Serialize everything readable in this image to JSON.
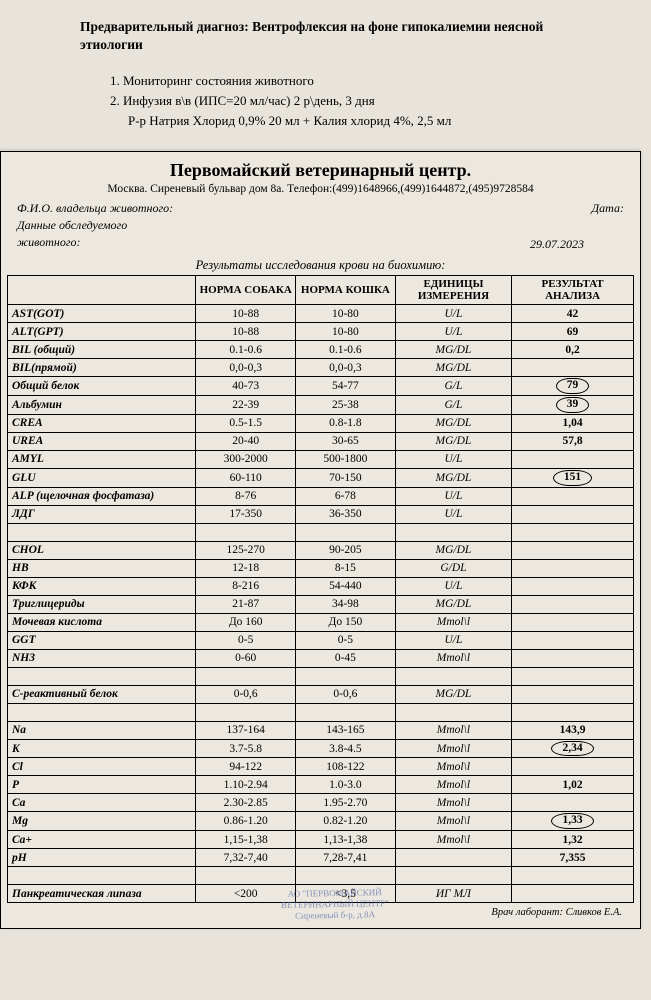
{
  "diagnosis_label": "Предварительный диагноз: Вентрофлексия на фоне гипокалиемии неясной этиологии",
  "list": {
    "i1": "1.  Мониторинг состояния животного",
    "i2": "2.  Инфузия в\\в (ИПС=20 мл/час) 2 р\\день, 3 дня",
    "i2b": "Р-р Натрия Хлорид 0,9% 20 мл + Калия хлорид 4%, 2,5 мл"
  },
  "clinic": {
    "title": "Первомайский ветеринарный центр.",
    "address": "Москва. Сиреневый бульвар дом 8а. Телефон:(499)1648966,(499)1644872,(495)9728584",
    "owner_label": "Ф.И.О. владельца животного:",
    "date_label": "Дата:",
    "data_label1": "Данные обследуемого",
    "data_label2": "животного:",
    "date_value": "29.07.2023",
    "results_title": "Результаты исследования крови на биохимию:"
  },
  "headers": {
    "param": "",
    "dog": "НОРМА СОБАКА",
    "cat": "НОРМА КОШКА",
    "unit": "ЕДИНИЦЫ ИЗМЕРЕНИЯ",
    "result": "РЕЗУЛЬТАТ АНАЛИЗА"
  },
  "rows": [
    {
      "p": "AST(GOT)",
      "d": "10-88",
      "c": "10-80",
      "u": "U/L",
      "r": "42",
      "circ": false
    },
    {
      "p": "ALT(GPT)",
      "d": "10-88",
      "c": "10-80",
      "u": "U/L",
      "r": "69",
      "circ": false
    },
    {
      "p": "BIL (общий)",
      "d": "0.1-0.6",
      "c": "0.1-0.6",
      "u": "MG/DL",
      "r": "0,2",
      "circ": false
    },
    {
      "p": "BIL(прямой)",
      "d": "0,0-0,3",
      "c": "0,0-0,3",
      "u": "MG/DL",
      "r": "",
      "circ": false
    },
    {
      "p": "Общий белок",
      "d": "40-73",
      "c": "54-77",
      "u": "G/L",
      "r": "79",
      "circ": true
    },
    {
      "p": "Альбумин",
      "d": "22-39",
      "c": "25-38",
      "u": "G/L",
      "r": "39",
      "circ": true
    },
    {
      "p": "CREA",
      "d": "0.5-1.5",
      "c": "0.8-1.8",
      "u": "MG/DL",
      "r": "1,04",
      "circ": false
    },
    {
      "p": "UREA",
      "d": "20-40",
      "c": "30-65",
      "u": "MG/DL",
      "r": "57,8",
      "circ": false
    },
    {
      "p": "AMYL",
      "d": "300-2000",
      "c": "500-1800",
      "u": "U/L",
      "r": "",
      "circ": false
    },
    {
      "p": "GLU",
      "d": "60-110",
      "c": "70-150",
      "u": "MG/DL",
      "r": "151",
      "circ": true
    },
    {
      "p": "ALP (щелочная фосфатаза)",
      "d": "8-76",
      "c": "6-78",
      "u": "U/L",
      "r": "",
      "circ": false
    },
    {
      "p": "ЛДГ",
      "d": "17-350",
      "c": "36-350",
      "u": "U/L",
      "r": "",
      "circ": false
    },
    {
      "p": "",
      "d": "",
      "c": "",
      "u": "",
      "r": "",
      "circ": false
    },
    {
      "p": "CHOL",
      "d": "125-270",
      "c": "90-205",
      "u": "MG/DL",
      "r": "",
      "circ": false
    },
    {
      "p": "HB",
      "d": "12-18",
      "c": "8-15",
      "u": "G/DL",
      "r": "",
      "circ": false
    },
    {
      "p": "КФК",
      "d": "8-216",
      "c": "54-440",
      "u": "U/L",
      "r": "",
      "circ": false
    },
    {
      "p": "Триглицериды",
      "d": "21-87",
      "c": "34-98",
      "u": "MG/DL",
      "r": "",
      "circ": false
    },
    {
      "p": "Мочевая кислота",
      "d": "До 160",
      "c": "До 150",
      "u": "Mmol\\l",
      "r": "",
      "circ": false
    },
    {
      "p": "GGT",
      "d": "0-5",
      "c": "0-5",
      "u": "U/L",
      "r": "",
      "circ": false
    },
    {
      "p": "NH3",
      "d": "0-60",
      "c": "0-45",
      "u": "Mmol\\l",
      "r": "",
      "circ": false
    },
    {
      "p": "",
      "d": "",
      "c": "",
      "u": "",
      "r": "",
      "circ": false
    },
    {
      "p": "С-реактивный белок",
      "d": "0-0,6",
      "c": "0-0,6",
      "u": "MG/DL",
      "r": "",
      "circ": false
    },
    {
      "p": "",
      "d": "",
      "c": "",
      "u": "",
      "r": "",
      "circ": false
    },
    {
      "p": "Na",
      "d": "137-164",
      "c": "143-165",
      "u": "Mmol\\l",
      "r": "143,9",
      "circ": false
    },
    {
      "p": "K",
      "d": "3.7-5.8",
      "c": "3.8-4.5",
      "u": "Mmol\\l",
      "r": "2,34",
      "circ": true
    },
    {
      "p": "Cl",
      "d": "94-122",
      "c": "108-122",
      "u": "Mmol\\l",
      "r": "",
      "circ": false
    },
    {
      "p": "P",
      "d": "1.10-2.94",
      "c": "1.0-3.0",
      "u": "Mmol\\l",
      "r": "1,02",
      "circ": false
    },
    {
      "p": "Ca",
      "d": "2.30-2.85",
      "c": "1.95-2.70",
      "u": "Mmol\\l",
      "r": "",
      "circ": false
    },
    {
      "p": "Mg",
      "d": "0.86-1.20",
      "c": "0.82-1.20",
      "u": "Mmol\\l",
      "r": "1,33",
      "circ": true
    },
    {
      "p": "Ca+",
      "d": "1,15-1,38",
      "c": "1,13-1,38",
      "u": "Mmol\\l",
      "r": "1,32",
      "circ": false
    },
    {
      "p": "pH",
      "d": "7,32-7,40",
      "c": "7,28-7,41",
      "u": "",
      "r": "7,355",
      "circ": false
    },
    {
      "p": "",
      "d": "",
      "c": "",
      "u": "",
      "r": "",
      "circ": false
    },
    {
      "p": "Панкреатическая липаза",
      "d": "<200",
      "c": "<3,5",
      "u": "ИГ МЛ",
      "r": "",
      "circ": false
    }
  ],
  "doctor": "Врач лаборант: Сливков Е.А.",
  "stamp": {
    "l1": "АО \"ПЕРВОМАЙСКИЙ",
    "l2": "ВЕТЕРИНАРНЫЙ ЦЕНТР\"",
    "l3": "Сиреневый б-р, д.8А"
  },
  "colors": {
    "page_bg": "#e8e4db",
    "sheet_bg": "#ece8df",
    "border": "#000000",
    "text": "#000000",
    "stamp": "#5b6ca8"
  }
}
